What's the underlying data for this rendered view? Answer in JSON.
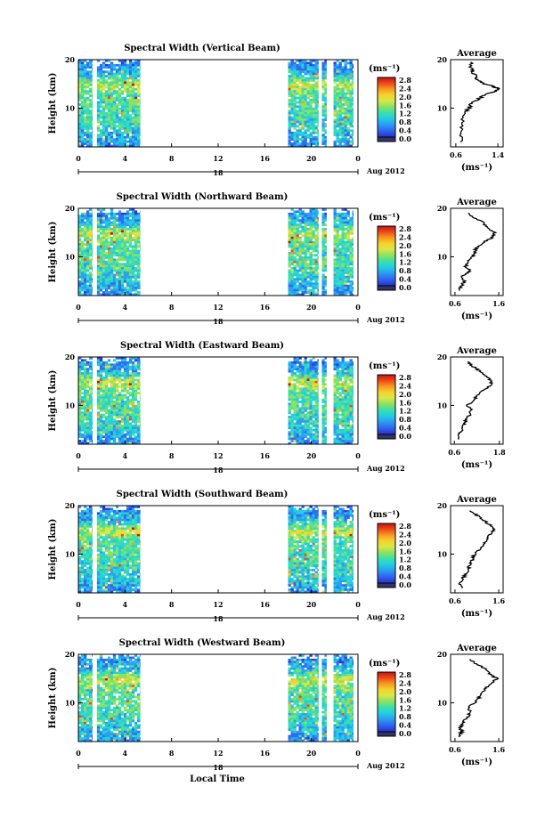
{
  "figure": {
    "xlabel": "Local Time",
    "cbar_unit": "(ms⁻¹)",
    "avg_title": "Average",
    "avg_xlabel": "(ms⁻¹)",
    "date_label": "Aug 2012",
    "day_label": "18",
    "ylabel": "Height (km)"
  },
  "colors": {
    "colormap": [
      "#1f1f8c",
      "#2a3bd6",
      "#2f6cf0",
      "#2aa0f2",
      "#22cfe0",
      "#3de0a8",
      "#8fe060",
      "#d6e84a",
      "#f6d32a",
      "#f79a22",
      "#ee4a1a",
      "#c41414"
    ],
    "zero_color": "#333366"
  },
  "chart_data": [
    {
      "type": "heatmap",
      "title": "Spectral Width (Vertical Beam)",
      "ylabel": "Height (km)",
      "xlabel": "",
      "x_ticks": [
        "0",
        "4",
        "8",
        "12",
        "16",
        "20",
        "0"
      ],
      "xlim": [
        0,
        24
      ],
      "ylim": [
        2,
        20
      ],
      "y_ticks": [
        "20",
        "10"
      ],
      "data_intervals_hours": [
        [
          0,
          1.2
        ],
        [
          1.6,
          5.3
        ],
        [
          18,
          20.6
        ],
        [
          20.9,
          21.3
        ],
        [
          21.9,
          23.6
        ]
      ],
      "colorbar": {
        "unit": "(ms⁻¹)",
        "ticks": [
          "2.8",
          "2.4",
          "2.0",
          "1.6",
          "1.2",
          "0.8",
          "0.4",
          "0.0"
        ],
        "range": [
          0,
          2.8
        ]
      },
      "average_profile": {
        "title": "Average",
        "xlabel": "(ms⁻¹)",
        "x_ticks": [
          "0.6",
          "1.4"
        ],
        "xlim": [
          0.5,
          1.5
        ],
        "ylim": [
          2,
          20
        ],
        "y_ticks": [
          "20",
          "10"
        ],
        "height_km": [
          3,
          5,
          7,
          9,
          10,
          11,
          12,
          13,
          13.5,
          14,
          14.5,
          15,
          16,
          17,
          18,
          19.5
        ],
        "values": [
          0.7,
          0.68,
          0.72,
          0.78,
          0.85,
          0.9,
          1.05,
          1.2,
          1.35,
          1.42,
          1.3,
          1.15,
          1.0,
          0.95,
          0.9,
          0.88
        ]
      }
    },
    {
      "type": "heatmap",
      "title": "Spectral Width (Northward Beam)",
      "ylabel": "Height (km)",
      "xlabel": "",
      "x_ticks": [
        "0",
        "4",
        "8",
        "12",
        "16",
        "20",
        "0"
      ],
      "xlim": [
        0,
        24
      ],
      "ylim": [
        2,
        20
      ],
      "y_ticks": [
        "20",
        "10"
      ],
      "data_intervals_hours": [
        [
          0,
          1.2
        ],
        [
          1.6,
          5.3
        ],
        [
          18,
          20.6
        ],
        [
          20.9,
          21.3
        ],
        [
          21.9,
          23.6
        ]
      ],
      "colorbar": {
        "unit": "(ms⁻¹)",
        "ticks": [
          "2.8",
          "2.4",
          "2.0",
          "1.6",
          "1.2",
          "0.8",
          "0.4",
          "0.0"
        ],
        "range": [
          0,
          2.8
        ]
      },
      "average_profile": {
        "title": "Average",
        "xlabel": "(ms⁻¹)",
        "x_ticks": [
          "0.6",
          "1.6"
        ],
        "xlim": [
          0.5,
          1.7
        ],
        "ylim": [
          2,
          20
        ],
        "y_ticks": [
          "20",
          "10"
        ],
        "height_km": [
          3,
          4,
          5,
          6,
          7,
          8,
          9,
          10,
          11,
          12,
          13,
          14,
          15,
          16,
          17,
          18,
          19
        ],
        "values": [
          0.7,
          0.75,
          0.8,
          0.75,
          0.95,
          0.85,
          0.9,
          1.0,
          1.05,
          1.1,
          1.25,
          1.45,
          1.5,
          1.35,
          1.25,
          1.05,
          0.9
        ]
      }
    },
    {
      "type": "heatmap",
      "title": "Spectral Width (Eastward Beam)",
      "ylabel": "Height (km)",
      "xlabel": "",
      "x_ticks": [
        "0",
        "4",
        "8",
        "12",
        "16",
        "20",
        "0"
      ],
      "xlim": [
        0,
        24
      ],
      "ylim": [
        2,
        20
      ],
      "y_ticks": [
        "20",
        "10"
      ],
      "data_intervals_hours": [
        [
          0,
          1.2
        ],
        [
          1.6,
          5.3
        ],
        [
          18,
          20.6
        ],
        [
          20.9,
          21.3
        ],
        [
          21.9,
          23.6
        ]
      ],
      "colorbar": {
        "unit": "(ms⁻¹)",
        "ticks": [
          "2.8",
          "2.4",
          "2.0",
          "1.6",
          "1.2",
          "0.8",
          "0.4",
          "0.0"
        ],
        "range": [
          0,
          2.8
        ]
      },
      "average_profile": {
        "title": "Average",
        "xlabel": "(ms⁻¹)",
        "x_ticks": [
          "0.6",
          "1.8"
        ],
        "xlim": [
          0.5,
          1.9
        ],
        "ylim": [
          2,
          20
        ],
        "y_ticks": [
          "20",
          "10"
        ],
        "height_km": [
          3,
          4,
          5,
          6,
          7,
          8,
          9,
          10,
          11,
          12,
          13,
          14,
          15,
          16,
          17,
          18,
          19
        ],
        "values": [
          0.75,
          0.7,
          0.8,
          0.85,
          0.9,
          1.0,
          1.05,
          0.95,
          1.1,
          1.2,
          1.35,
          1.55,
          1.6,
          1.45,
          1.3,
          1.1,
          0.95
        ]
      }
    },
    {
      "type": "heatmap",
      "title": "Spectral Width (Southward Beam)",
      "ylabel": "Height (km)",
      "xlabel": "",
      "x_ticks": [
        "0",
        "4",
        "8",
        "12",
        "16",
        "20",
        "0"
      ],
      "xlim": [
        0,
        24
      ],
      "ylim": [
        2,
        20
      ],
      "y_ticks": [
        "20",
        "10"
      ],
      "data_intervals_hours": [
        [
          0,
          1.2
        ],
        [
          1.6,
          5.3
        ],
        [
          18,
          20.6
        ],
        [
          20.9,
          21.3
        ],
        [
          21.9,
          23.6
        ]
      ],
      "colorbar": {
        "unit": "(ms⁻¹)",
        "ticks": [
          "2.8",
          "2.4",
          "2.0",
          "1.6",
          "1.2",
          "0.8",
          "0.4",
          "0.0"
        ],
        "range": [
          0,
          2.8
        ]
      },
      "average_profile": {
        "title": "Average",
        "xlabel": "(ms⁻¹)",
        "x_ticks": [
          "0.6",
          "1.6"
        ],
        "xlim": [
          0.5,
          1.7
        ],
        "ylim": [
          2,
          20
        ],
        "y_ticks": [
          "20",
          "10"
        ],
        "height_km": [
          3,
          4,
          5,
          6,
          7,
          8,
          9,
          10,
          11,
          12,
          13,
          14,
          15,
          16,
          17,
          18,
          19
        ],
        "values": [
          0.75,
          0.72,
          0.78,
          0.85,
          0.9,
          0.95,
          1.0,
          1.05,
          1.15,
          1.25,
          1.35,
          1.4,
          1.5,
          1.4,
          1.25,
          1.1,
          0.95
        ]
      }
    },
    {
      "type": "heatmap",
      "title": "Spectral Width (Westward Beam)",
      "ylabel": "Height (km)",
      "xlabel": "Local Time",
      "x_ticks": [
        "0",
        "4",
        "8",
        "12",
        "16",
        "20",
        "0"
      ],
      "xlim": [
        0,
        24
      ],
      "ylim": [
        2,
        20
      ],
      "y_ticks": [
        "20",
        "10"
      ],
      "data_intervals_hours": [
        [
          0,
          1.2
        ],
        [
          1.6,
          5.3
        ],
        [
          18,
          20.6
        ],
        [
          20.9,
          21.3
        ],
        [
          21.9,
          23.6
        ]
      ],
      "colorbar": {
        "unit": "(ms⁻¹)",
        "ticks": [
          "2.8",
          "2.4",
          "2.0",
          "1.6",
          "1.2",
          "0.8",
          "0.4",
          "0.0"
        ],
        "range": [
          0,
          2.8
        ]
      },
      "average_profile": {
        "title": "Average",
        "xlabel": "(ms⁻¹)",
        "x_ticks": [
          "0.6",
          "1.6"
        ],
        "xlim": [
          0.5,
          1.7
        ],
        "ylim": [
          2,
          20
        ],
        "y_ticks": [
          "20",
          "10"
        ],
        "height_km": [
          3,
          4,
          5,
          6,
          7,
          8,
          9,
          10,
          11,
          12,
          13,
          14,
          15,
          16,
          17,
          18,
          19
        ],
        "values": [
          0.7,
          0.75,
          0.72,
          0.8,
          0.88,
          0.95,
          0.9,
          1.05,
          1.15,
          1.2,
          1.3,
          1.45,
          1.55,
          1.4,
          1.3,
          1.1,
          0.95
        ]
      }
    }
  ]
}
